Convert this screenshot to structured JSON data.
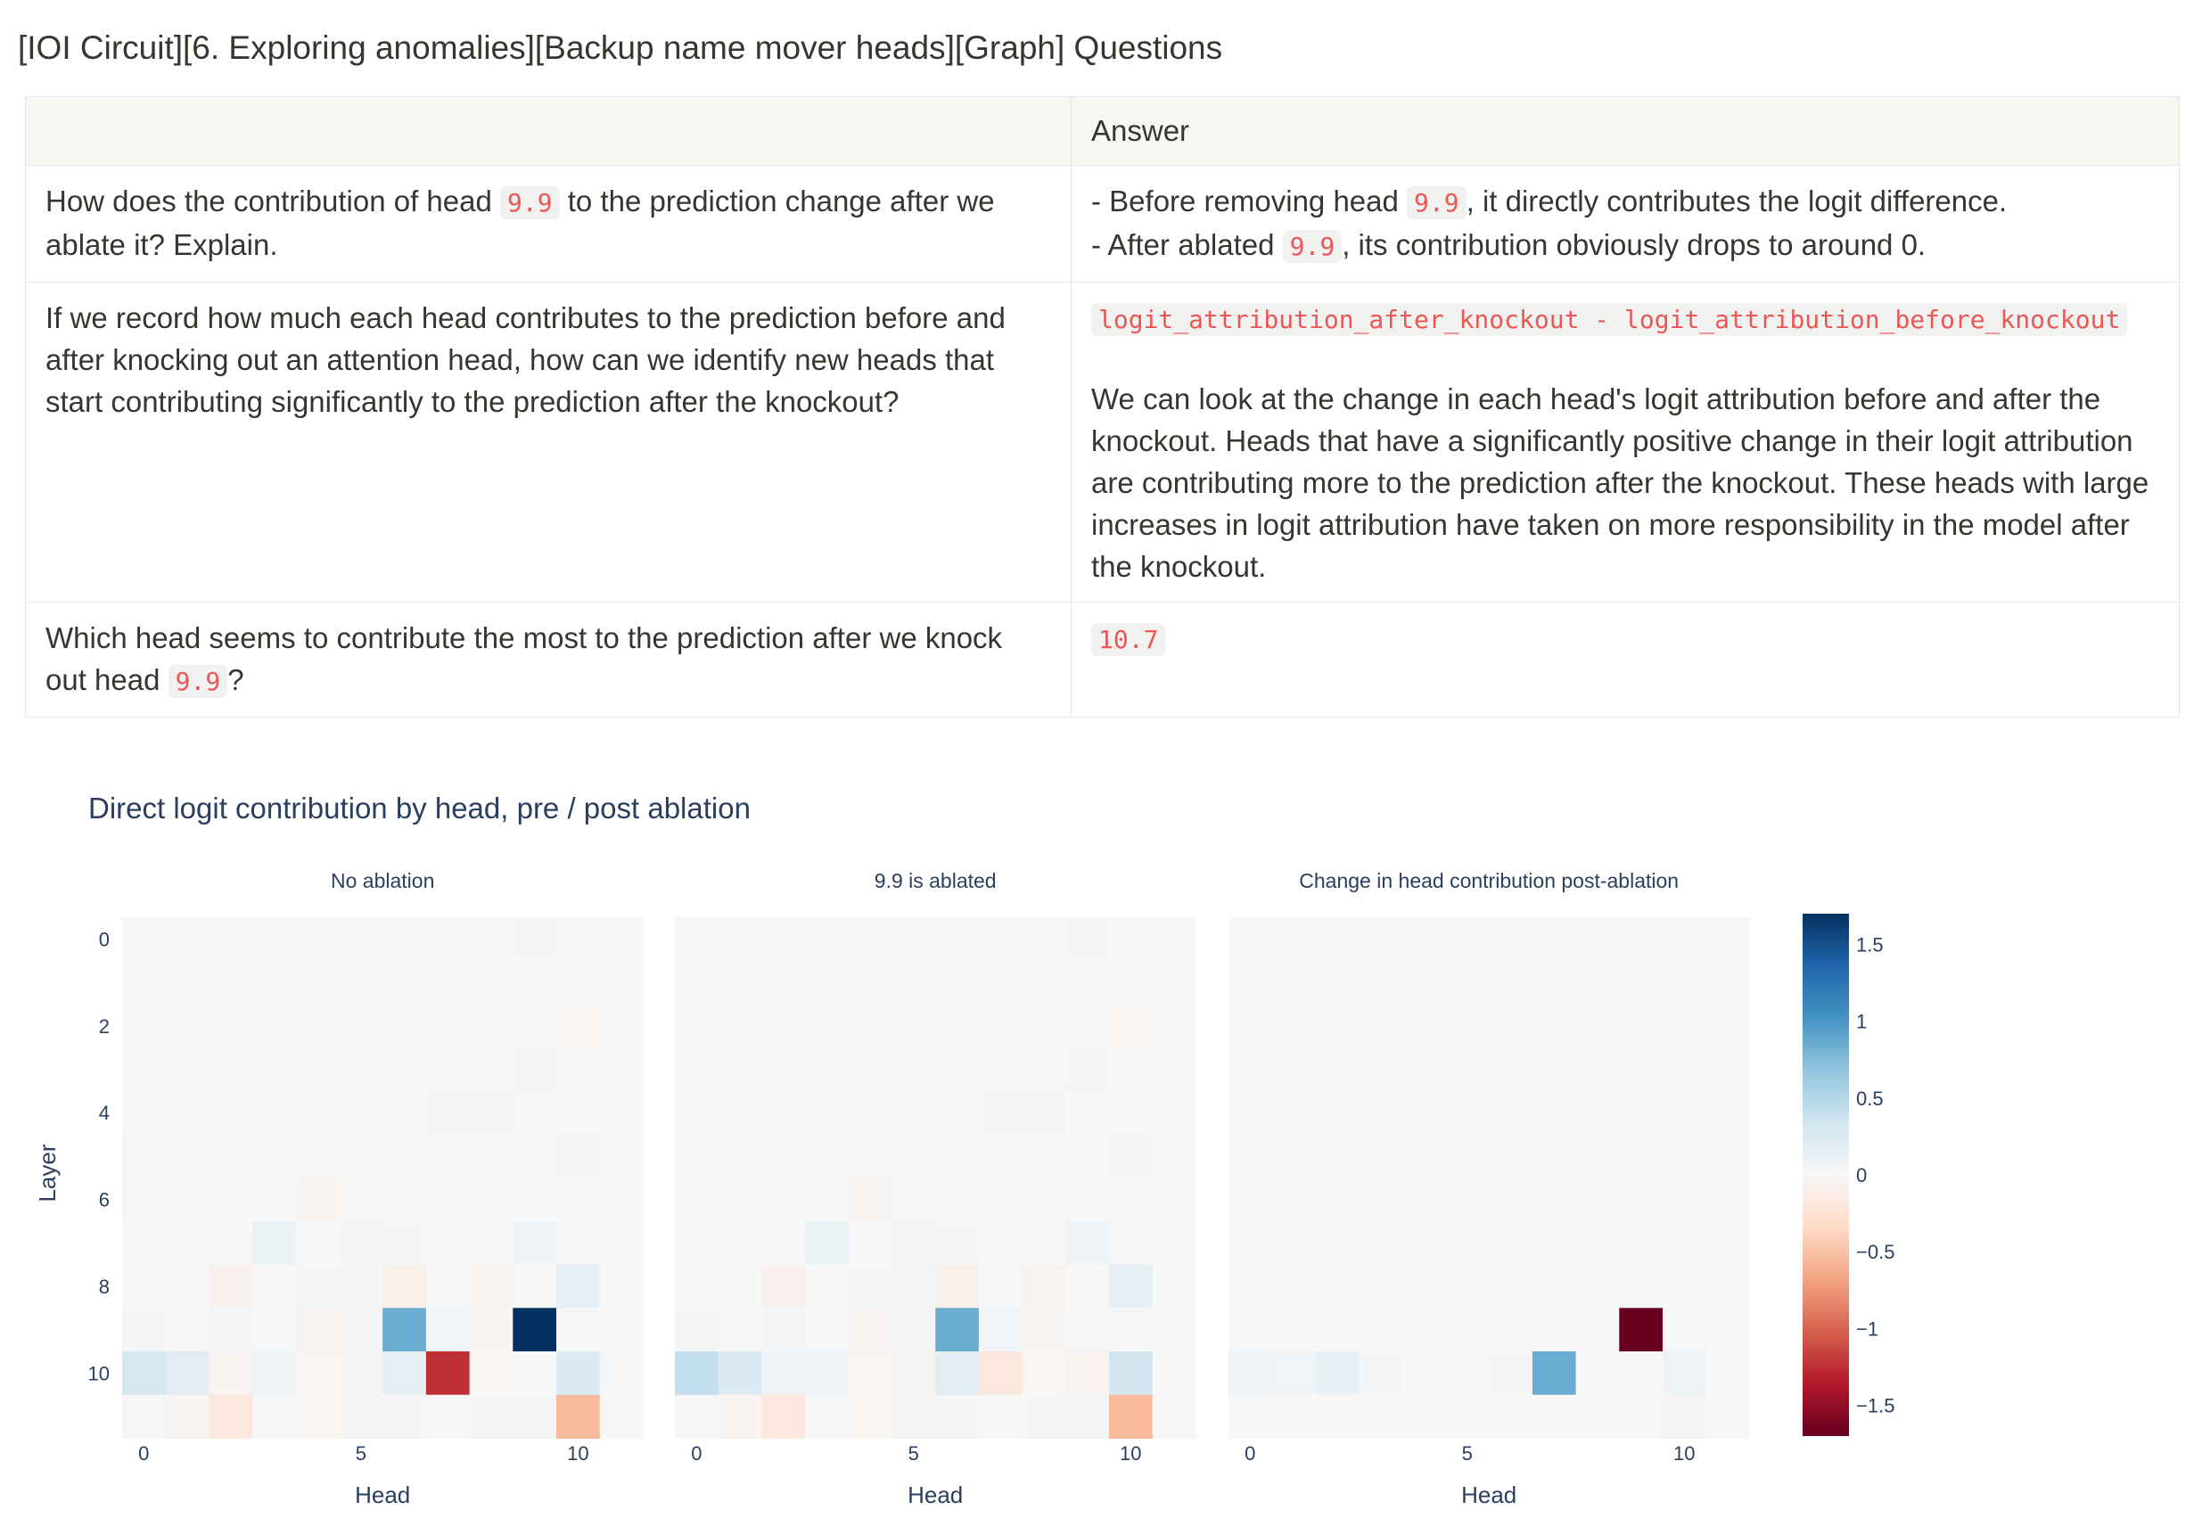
{
  "toggle": {
    "arrow": "▾",
    "title": "[IOI Circuit][6. Exploring anomalies][Backup name mover heads][Graph] Questions"
  },
  "table": {
    "headers": [
      "",
      "Answer"
    ],
    "rows": [
      {
        "question": {
          "pre": "How does the contribution of head ",
          "code": "9.9",
          "post": " to the prediction change after we ablate it? Explain."
        },
        "answer": {
          "line1": {
            "pre": "- Before removing head ",
            "code": "9.9",
            "post": ", it directly contributes the logit difference."
          },
          "line2": {
            "pre": "- After ablated ",
            "code": "9.9",
            "post": ", its contribution obviously drops to around 0."
          }
        }
      },
      {
        "question": {
          "text": "If we record how much each head contributes to the prediction before and after knocking out an attention head, how can we identify new heads that start contributing significantly to the prediction after the knockout?"
        },
        "answer": {
          "code": "logit_attribution_after_knockout - logit_attribution_before_knockout",
          "text": "We can look at the change in each head's logit attribution before and after the knockout. Heads that have a significantly positive change in their logit attribution are contributing more to the prediction after the knockout. These heads with large increases in logit attribution have taken on more responsibility in the model after the knockout."
        }
      },
      {
        "question": {
          "pre": "Which head seems to contribute the most to the prediction after we knock out head ",
          "code": "9.9",
          "post": "?"
        },
        "answer": {
          "code": "10.7"
        }
      }
    ]
  },
  "chart_data": {
    "type": "heatmap",
    "title": "Direct logit contribution by head, pre / post ablation",
    "xlabel": "Head",
    "ylabel": "Layer",
    "x_ticks": [
      "0",
      "5",
      "10"
    ],
    "y_ticks": [
      "0",
      "2",
      "4",
      "6",
      "8",
      "10"
    ],
    "n_rows": 12,
    "n_cols": 12,
    "zlim": [
      -1.7,
      1.7
    ],
    "colorscale": "RdBu",
    "colorbar_ticks": [
      "1.5",
      "1",
      "0.5",
      "0",
      "−0.5",
      "−1",
      "−1.5"
    ],
    "colorbar_values": [
      1.5,
      1,
      0.5,
      0,
      -0.5,
      -1,
      -1.5
    ],
    "panels": [
      {
        "title": "No ablation",
        "cells": [
          [
            0,
            0,
            0,
            0.0,
            0,
            0,
            0,
            0.02,
            0,
            0.03,
            0,
            0
          ],
          [
            0,
            0.01,
            0,
            0,
            0,
            0,
            0,
            0,
            0,
            0,
            0,
            0
          ],
          [
            0,
            0,
            0.01,
            0,
            0,
            0,
            0,
            0,
            0,
            0,
            -0.03,
            0
          ],
          [
            0,
            0,
            0,
            0,
            0,
            0,
            0,
            0.01,
            0.02,
            0.03,
            0,
            0
          ],
          [
            0,
            0,
            0,
            0,
            0,
            0,
            0,
            0.03,
            0.04,
            0,
            0,
            0
          ],
          [
            0.01,
            0.02,
            0.02,
            0,
            0,
            0,
            0.01,
            0,
            0,
            0,
            -0.02,
            0
          ],
          [
            0.02,
            0,
            0,
            0,
            -0.04,
            0.02,
            0,
            0,
            0,
            0,
            0,
            0
          ],
          [
            0,
            0,
            0,
            0.12,
            0,
            0.03,
            0.03,
            0,
            0,
            0.08,
            0.02,
            0
          ],
          [
            0,
            0,
            -0.08,
            0,
            0.03,
            0.03,
            -0.1,
            0.02,
            -0.06,
            0,
            0.16,
            0
          ],
          [
            0.04,
            0.01,
            0.03,
            0.02,
            -0.05,
            0.03,
            0.85,
            0.06,
            -0.04,
            1.7,
            0,
            0.01
          ],
          [
            0.3,
            0.2,
            -0.05,
            0.08,
            -0.03,
            -0.02,
            0.15,
            -1.25,
            -0.03,
            0,
            0.25,
            0.02
          ],
          [
            0.02,
            -0.04,
            -0.18,
            0.02,
            -0.03,
            -0.02,
            0.04,
            0,
            0.03,
            0.03,
            -0.55,
            0.01
          ]
        ]
      },
      {
        "title": "9.9 is ablated",
        "cells": [
          [
            0,
            0,
            0,
            0.0,
            0,
            0,
            0,
            0.02,
            0,
            0.03,
            0,
            0
          ],
          [
            0,
            0.01,
            0,
            0,
            0,
            0,
            0,
            0,
            0,
            0,
            0,
            0
          ],
          [
            0,
            0,
            0.01,
            0,
            0,
            0,
            0,
            0,
            0,
            0,
            -0.03,
            0
          ],
          [
            0,
            0,
            0,
            0,
            0,
            0,
            0,
            0.01,
            0.02,
            0.03,
            0,
            0
          ],
          [
            0,
            0,
            0,
            0,
            0,
            0,
            0,
            0.03,
            0.04,
            0,
            0,
            0
          ],
          [
            0.01,
            0.02,
            0.02,
            0,
            0,
            0,
            0.01,
            0,
            0,
            0,
            -0.02,
            0
          ],
          [
            0.02,
            0,
            0,
            0,
            -0.04,
            0.02,
            0,
            0,
            0,
            0,
            0,
            0
          ],
          [
            0,
            0,
            0,
            0.12,
            0,
            0.03,
            0.03,
            0,
            0,
            0.08,
            0.02,
            0
          ],
          [
            0,
            0,
            -0.08,
            0,
            0.03,
            0.03,
            -0.1,
            0.02,
            -0.06,
            0,
            0.16,
            0
          ],
          [
            0.04,
            0.01,
            0.03,
            0.02,
            -0.05,
            0.03,
            0.85,
            0.06,
            -0.04,
            0.02,
            0,
            0.01
          ],
          [
            0.42,
            0.25,
            0.1,
            0.1,
            -0.03,
            -0.02,
            0.2,
            -0.2,
            -0.03,
            -0.05,
            0.32,
            0.02
          ],
          [
            0.02,
            -0.04,
            -0.18,
            0.02,
            -0.03,
            -0.02,
            0.04,
            0,
            0.03,
            0.03,
            -0.55,
            0.01
          ]
        ]
      },
      {
        "title": "Change in head contribution post-ablation",
        "cells": [
          [
            0,
            0,
            0,
            0,
            0,
            0,
            0,
            0,
            0,
            0,
            0,
            0
          ],
          [
            0,
            0,
            0,
            0,
            0,
            0,
            0,
            0,
            0,
            0,
            0,
            0
          ],
          [
            0,
            0,
            0,
            0,
            0,
            0,
            0,
            0,
            0,
            0,
            0,
            0
          ],
          [
            0,
            0,
            0,
            0,
            0,
            0,
            0,
            0,
            0,
            0,
            0,
            0
          ],
          [
            0,
            0,
            0,
            0,
            0,
            0,
            0,
            0,
            0,
            0,
            0,
            0
          ],
          [
            0,
            0,
            0,
            0,
            0,
            0,
            0,
            0,
            0,
            0,
            0,
            0
          ],
          [
            0,
            0,
            0,
            0,
            0,
            0,
            0,
            0,
            0,
            0,
            0,
            0
          ],
          [
            0,
            0,
            0,
            0,
            0,
            0,
            0,
            0,
            0,
            0,
            0,
            0
          ],
          [
            0,
            0,
            0,
            0,
            0,
            0,
            0,
            0,
            0,
            0,
            0,
            0
          ],
          [
            0,
            0,
            0,
            0,
            0,
            0,
            0,
            0,
            0,
            -1.7,
            0,
            0
          ],
          [
            0.1,
            0.05,
            0.14,
            0.03,
            0,
            0,
            0.04,
            0.85,
            0,
            0,
            0.1,
            0
          ],
          [
            0,
            0,
            0,
            0,
            0,
            0,
            0,
            0,
            0,
            0,
            -0.02,
            0
          ]
        ]
      }
    ]
  },
  "colors": {
    "title": "#2a3f5f",
    "text": "#37352f",
    "code": "#eb5757",
    "border": "#e6e5e1",
    "header_bg": "#f7f6f3"
  }
}
